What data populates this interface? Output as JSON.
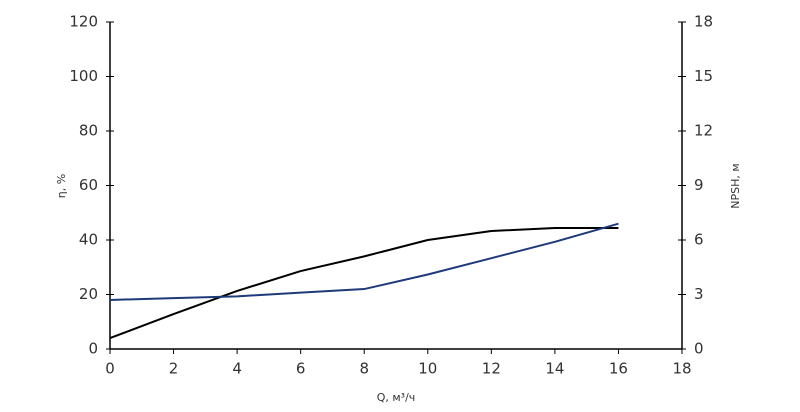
{
  "chart_data": {
    "type": "line",
    "x_label": "Q, м³/ч",
    "y_label": "η, %",
    "y2_label": "NPSH, м",
    "x": [
      0,
      2,
      4,
      6,
      8,
      10,
      12,
      14,
      16
    ],
    "series": [
      {
        "name": "η",
        "color": "#000000",
        "values": [
          4,
          12.8,
          21.3,
          28.6,
          34,
          40,
          43.3,
          44.4,
          44.4
        ]
      },
      {
        "name": "NPSH",
        "color": "#1f3a7a",
        "axis": "y2",
        "values": [
          2.7,
          2.8,
          2.9,
          3.1,
          3.3,
          4.1,
          5.0,
          5.9,
          6.9
        ]
      }
    ],
    "xlim": [
      0,
      18
    ],
    "xticks": [
      0,
      2,
      4,
      6,
      8,
      10,
      12,
      14,
      16,
      18
    ],
    "ylim": [
      0,
      120
    ],
    "yticks": [
      0,
      20,
      40,
      60,
      80,
      100,
      120
    ],
    "y2lim": [
      0,
      18
    ],
    "y2ticks": [
      0,
      3,
      6,
      9,
      12,
      15,
      18
    ]
  }
}
